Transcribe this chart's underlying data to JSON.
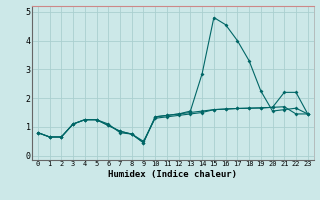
{
  "xlabel": "Humidex (Indice chaleur)",
  "xlim": [
    -0.5,
    23.5
  ],
  "ylim": [
    -0.15,
    5.2
  ],
  "yticks": [
    0,
    1,
    2,
    3,
    4,
    5
  ],
  "xticks": [
    0,
    1,
    2,
    3,
    4,
    5,
    6,
    7,
    8,
    9,
    10,
    11,
    12,
    13,
    14,
    15,
    16,
    17,
    18,
    19,
    20,
    21,
    22,
    23
  ],
  "bg_color": "#cce8e8",
  "grid_color": "#aacfcf",
  "border_top_color": "#d09090",
  "line_color": "#006666",
  "lines": [
    [
      0.8,
      0.65,
      0.65,
      1.1,
      1.25,
      1.25,
      1.05,
      0.85,
      0.75,
      0.45,
      1.35,
      1.4,
      1.45,
      1.5,
      1.55,
      1.6,
      1.62,
      1.64,
      1.65,
      1.66,
      1.68,
      1.7,
      1.45,
      1.45
    ],
    [
      0.8,
      0.65,
      0.65,
      1.1,
      1.25,
      1.25,
      1.1,
      0.8,
      0.75,
      0.5,
      1.3,
      1.35,
      1.4,
      1.45,
      1.5,
      1.6,
      1.62,
      1.64,
      1.65,
      1.66,
      1.68,
      2.2,
      2.2,
      1.45
    ],
    [
      0.8,
      0.65,
      0.65,
      1.1,
      1.25,
      1.25,
      1.05,
      0.85,
      0.75,
      0.45,
      1.35,
      1.4,
      1.45,
      1.55,
      2.85,
      4.8,
      4.55,
      4.0,
      3.3,
      2.25,
      1.55,
      1.6,
      1.65,
      1.45
    ]
  ]
}
